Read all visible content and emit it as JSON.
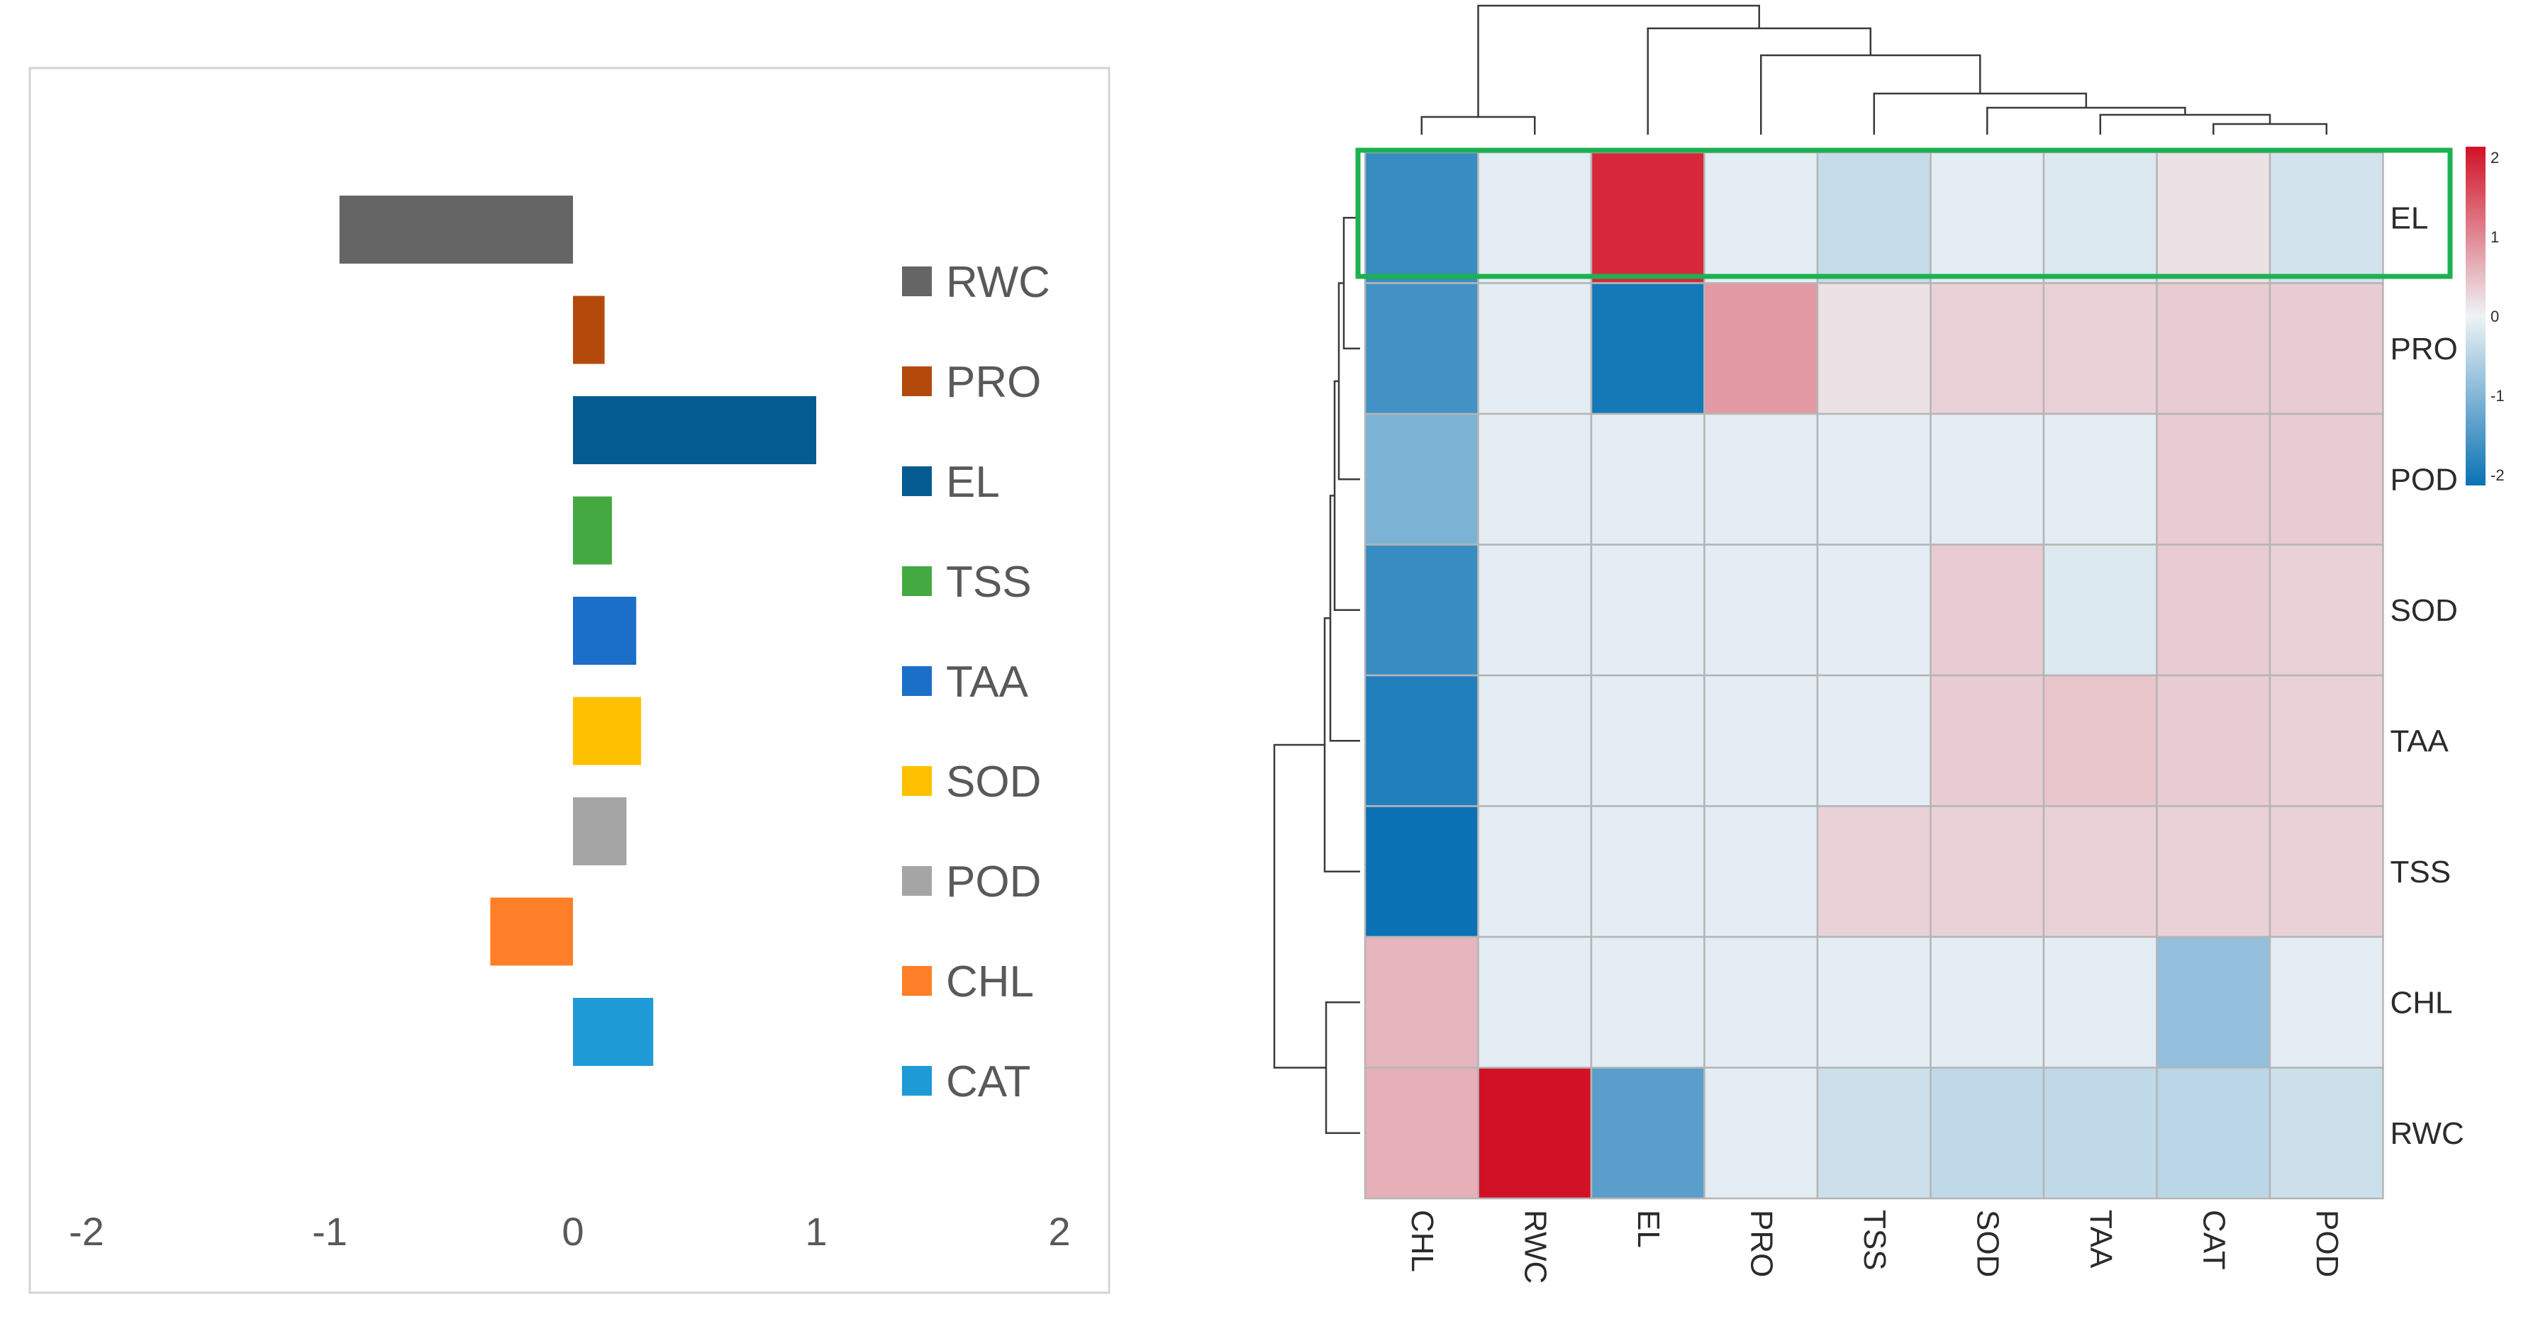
{
  "chart_data": [
    {
      "type": "bar",
      "orientation": "horizontal",
      "categories": [
        "RWC",
        "PRO",
        "EL",
        "TSS",
        "TAA",
        "SOD",
        "POD",
        "CHL",
        "CAT"
      ],
      "values": [
        -0.96,
        0.13,
        1.0,
        0.16,
        0.26,
        0.28,
        0.22,
        -0.34,
        0.33
      ],
      "colors": [
        "#656565",
        "#b34a0c",
        "#045b92",
        "#44a940",
        "#1b6fc9",
        "#ffc000",
        "#a5a5a5",
        "#fe7f28",
        "#1e9bd7"
      ],
      "xlim": [
        -2,
        2
      ],
      "xticks": [
        "-2",
        "-1",
        "0",
        "1",
        "2"
      ],
      "legend": [
        "RWC",
        "PRO",
        "EL",
        "TSS",
        "TAA",
        "SOD",
        "POD",
        "CHL",
        "CAT"
      ],
      "legend_position": "right",
      "title": "",
      "xlabel": "",
      "ylabel": ""
    },
    {
      "type": "heatmap",
      "columns": [
        "CHL",
        "RWC",
        "EL",
        "PRO",
        "TSS",
        "SOD",
        "TAA",
        "CAT",
        "POD"
      ],
      "rows": [
        "EL",
        "PRO",
        "POD",
        "SOD",
        "TAA",
        "TSS",
        "CHL",
        "RWC"
      ],
      "values": [
        [
          -1.6,
          -0.1,
          1.8,
          -0.1,
          -0.35,
          -0.1,
          -0.15,
          0.15,
          -0.25
        ],
        [
          -1.5,
          -0.1,
          -1.9,
          0.8,
          0.15,
          0.3,
          0.3,
          0.35,
          0.35
        ],
        [
          -1.0,
          -0.1,
          -0.1,
          -0.1,
          -0.1,
          -0.1,
          -0.1,
          0.35,
          0.35
        ],
        [
          -1.6,
          -0.1,
          -0.1,
          -0.1,
          -0.1,
          0.35,
          -0.15,
          0.35,
          0.3
        ],
        [
          -1.8,
          -0.1,
          -0.1,
          -0.1,
          -0.1,
          0.35,
          0.4,
          0.35,
          0.3
        ],
        [
          -2.0,
          -0.1,
          -0.1,
          -0.1,
          0.3,
          0.3,
          0.3,
          0.3,
          0.3
        ],
        [
          0.55,
          -0.1,
          -0.1,
          -0.1,
          -0.1,
          -0.1,
          -0.1,
          -0.8,
          -0.1
        ],
        [
          0.6,
          2.2,
          -1.3,
          -0.1,
          -0.3,
          -0.4,
          -0.4,
          -0.45,
          -0.3
        ]
      ],
      "color_scale": {
        "min": -2,
        "max": 2,
        "low": "#0a72b4",
        "mid": "#eef3f6",
        "high": "#d21126"
      },
      "colorbar_ticks": [
        "2",
        "1",
        "0",
        "-1",
        "-2"
      ],
      "highlighted_row": "EL",
      "highlight_color": "#1db151",
      "dendrogram": {
        "columns": "(CHL,RWC),(EL,(PRO,(TSS,(SOD,(TAA,(CAT,POD))))))",
        "rows": "((((((EL,PRO),POD),SOD),TAA),TSS),(CHL,RWC))"
      }
    }
  ]
}
